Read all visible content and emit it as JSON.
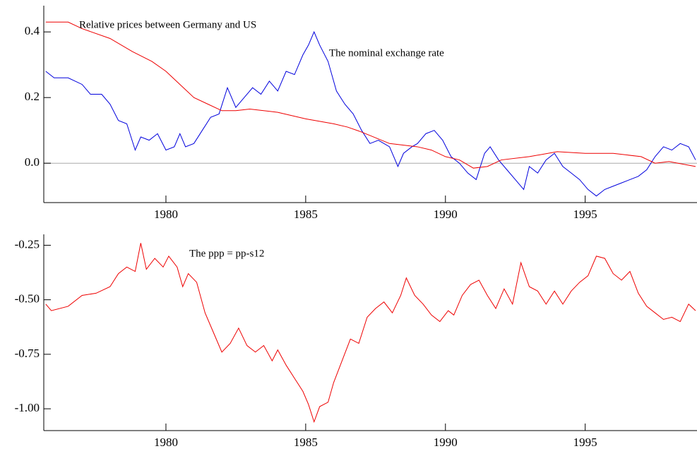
{
  "chart_data": [
    {
      "type": "line",
      "annotations": [
        "Relative prices between Germany and US",
        "The nominal exchange rate"
      ],
      "xlim": [
        1975.63,
        1999.0
      ],
      "xticks": [
        1980,
        1985,
        1990,
        1995
      ],
      "ylim": [
        -0.12,
        0.48
      ],
      "yticks": [
        {
          "value": 0,
          "label": "0.0"
        },
        0.2,
        0.4
      ],
      "hline": 0,
      "series": [
        {
          "color": "#0000dd",
          "x": [
            1975.7,
            1976,
            1976.5,
            1977,
            1977.3,
            1977.7,
            1978,
            1978.3,
            1978.6,
            1978.9,
            1979.1,
            1979.4,
            1979.7,
            1980,
            1980.3,
            1980.5,
            1980.7,
            1981,
            1981.3,
            1981.6,
            1981.9,
            1982.2,
            1982.5,
            1982.8,
            1983.1,
            1983.4,
            1983.7,
            1984,
            1984.3,
            1984.6,
            1984.9,
            1985.1,
            1985.3,
            1985.5,
            1985.8,
            1986.1,
            1986.4,
            1986.7,
            1987,
            1987.3,
            1987.6,
            1988,
            1988.3,
            1988.5,
            1988.8,
            1989,
            1989.3,
            1989.6,
            1989.9,
            1990.2,
            1990.5,
            1990.8,
            1991.1,
            1991.4,
            1991.6,
            1991.9,
            1992.2,
            1992.5,
            1992.8,
            1993,
            1993.3,
            1993.6,
            1993.9,
            1994.2,
            1994.5,
            1994.8,
            1995.1,
            1995.4,
            1995.7,
            1996,
            1996.3,
            1996.6,
            1996.9,
            1997.2,
            1997.5,
            1997.8,
            1998.1,
            1998.4,
            1998.7,
            1998.95
          ],
          "values": [
            0.28,
            0.26,
            0.26,
            0.24,
            0.21,
            0.21,
            0.18,
            0.13,
            0.12,
            0.04,
            0.08,
            0.07,
            0.09,
            0.04,
            0.05,
            0.09,
            0.05,
            0.06,
            0.1,
            0.14,
            0.15,
            0.23,
            0.17,
            0.2,
            0.23,
            0.21,
            0.25,
            0.22,
            0.28,
            0.27,
            0.33,
            0.36,
            0.4,
            0.36,
            0.31,
            0.22,
            0.18,
            0.15,
            0.1,
            0.06,
            0.07,
            0.05,
            -0.01,
            0.03,
            0.05,
            0.06,
            0.09,
            0.1,
            0.07,
            0.02,
            0.0,
            -0.03,
            -0.05,
            0.03,
            0.05,
            0.01,
            -0.02,
            -0.05,
            -0.08,
            -0.01,
            -0.03,
            0.01,
            0.03,
            -0.01,
            -0.03,
            -0.05,
            -0.08,
            -0.1,
            -0.08,
            -0.07,
            -0.06,
            -0.05,
            -0.04,
            -0.02,
            0.02,
            0.05,
            0.04,
            0.06,
            0.05,
            0.01
          ]
        },
        {
          "color": "#ee0000",
          "x": [
            1975.7,
            1976.5,
            1977,
            1978,
            1978.8,
            1979.5,
            1980,
            1980.5,
            1981,
            1981.5,
            1982,
            1982.5,
            1983,
            1984,
            1985,
            1986,
            1986.5,
            1987,
            1988,
            1989,
            1989.5,
            1990,
            1990.5,
            1991,
            1991.5,
            1992,
            1993,
            1994,
            1995,
            1996,
            1997,
            1997.5,
            1998,
            1998.95
          ],
          "values": [
            0.43,
            0.43,
            0.41,
            0.38,
            0.34,
            0.31,
            0.28,
            0.24,
            0.2,
            0.18,
            0.16,
            0.16,
            0.165,
            0.155,
            0.135,
            0.12,
            0.11,
            0.095,
            0.06,
            0.05,
            0.04,
            0.02,
            0.01,
            -0.015,
            -0.01,
            0.01,
            0.02,
            0.035,
            0.03,
            0.03,
            0.02,
            0.0,
            0.005,
            -0.01
          ]
        }
      ]
    },
    {
      "type": "line",
      "annotations": [
        "The ppp = pp-s12"
      ],
      "xlim": [
        1975.63,
        1999.0
      ],
      "xticks": [
        1980,
        1985,
        1990,
        1995
      ],
      "ylim": [
        -1.1,
        -0.2
      ],
      "yticks": [
        {
          "value": -1,
          "label": "-1.00"
        },
        -0.75,
        {
          "value": -0.5,
          "label": "-0.50"
        },
        -0.25
      ],
      "series": [
        {
          "color": "#ee0000",
          "x": [
            1975.7,
            1975.9,
            1976.5,
            1977,
            1977.5,
            1978,
            1978.3,
            1978.6,
            1978.9,
            1979.1,
            1979.3,
            1979.6,
            1979.9,
            1980.1,
            1980.4,
            1980.6,
            1980.8,
            1981.1,
            1981.4,
            1981.7,
            1982,
            1982.3,
            1982.6,
            1982.9,
            1983.2,
            1983.5,
            1983.8,
            1984,
            1984.3,
            1984.6,
            1984.9,
            1985.1,
            1985.3,
            1985.5,
            1985.8,
            1986,
            1986.3,
            1986.6,
            1986.9,
            1987.2,
            1987.5,
            1987.8,
            1988.1,
            1988.4,
            1988.6,
            1988.9,
            1989.2,
            1989.5,
            1989.8,
            1990.1,
            1990.3,
            1990.6,
            1990.9,
            1991.2,
            1991.5,
            1991.8,
            1992.1,
            1992.4,
            1992.7,
            1993,
            1993.3,
            1993.6,
            1993.9,
            1994.2,
            1994.5,
            1994.8,
            1995.1,
            1995.4,
            1995.7,
            1996,
            1996.3,
            1996.6,
            1996.9,
            1997.2,
            1997.5,
            1997.8,
            1998.1,
            1998.4,
            1998.7,
            1998.95
          ],
          "values": [
            -0.52,
            -0.55,
            -0.53,
            -0.48,
            -0.47,
            -0.44,
            -0.38,
            -0.35,
            -0.37,
            -0.24,
            -0.36,
            -0.31,
            -0.35,
            -0.3,
            -0.35,
            -0.44,
            -0.38,
            -0.42,
            -0.56,
            -0.65,
            -0.74,
            -0.7,
            -0.63,
            -0.71,
            -0.74,
            -0.71,
            -0.78,
            -0.73,
            -0.8,
            -0.86,
            -0.92,
            -0.98,
            -1.06,
            -0.99,
            -0.97,
            -0.88,
            -0.78,
            -0.68,
            -0.7,
            -0.58,
            -0.54,
            -0.51,
            -0.56,
            -0.48,
            -0.4,
            -0.48,
            -0.52,
            -0.57,
            -0.6,
            -0.55,
            -0.57,
            -0.48,
            -0.43,
            -0.41,
            -0.48,
            -0.54,
            -0.45,
            -0.52,
            -0.33,
            -0.44,
            -0.46,
            -0.52,
            -0.46,
            -0.52,
            -0.46,
            -0.42,
            -0.39,
            -0.3,
            -0.31,
            -0.38,
            -0.41,
            -0.37,
            -0.47,
            -0.53,
            -0.56,
            -0.59,
            -0.58,
            -0.6,
            -0.52,
            -0.55
          ]
        }
      ]
    }
  ]
}
